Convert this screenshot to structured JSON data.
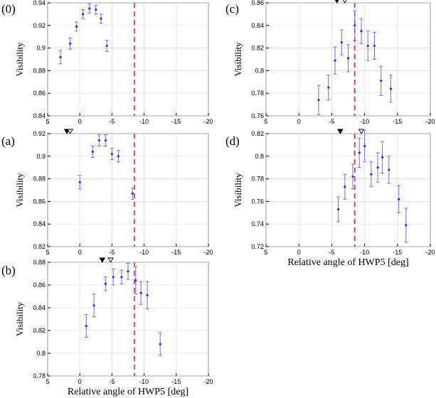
{
  "chart_data": [
    {
      "type": "scatter",
      "panel_label": "(0)",
      "title": "",
      "xlabel": "",
      "ylabel": "Visibility",
      "xlim": [
        5,
        -20
      ],
      "ylim": [
        0.84,
        0.94
      ],
      "xticks": [
        "5",
        "0",
        "-5",
        "-10",
        "-15",
        "-20"
      ],
      "yticks": [
        "0.84",
        "0.86",
        "0.88",
        "0.9",
        "0.92",
        "0.94"
      ],
      "grid": true,
      "dashed_line_x": -8.5,
      "markers": [],
      "series": [
        {
          "name": "Visibility",
          "x": [
            3,
            1.5,
            0.5,
            -0.5,
            -1.5,
            -2.5,
            -3.3,
            -4.2
          ],
          "y": [
            0.892,
            0.904,
            0.919,
            0.93,
            0.935,
            0.934,
            0.926,
            0.902
          ],
          "err": [
            0.006,
            0.005,
            0.004,
            0.004,
            0.004,
            0.004,
            0.004,
            0.005
          ]
        }
      ]
    },
    {
      "type": "scatter",
      "panel_label": "(a)",
      "title": "",
      "xlabel": "",
      "ylabel": "Visibility",
      "xlim": [
        5,
        -20
      ],
      "ylim": [
        0.82,
        0.92
      ],
      "xticks": [
        "5",
        "0",
        "-5",
        "-10",
        "-15",
        "-20"
      ],
      "yticks": [
        "0.82",
        "0.84",
        "0.86",
        "0.88",
        "0.9",
        "0.92"
      ],
      "grid": true,
      "dashed_line_x": -8.5,
      "markers": [
        {
          "x": 2.0,
          "style": "filled"
        },
        {
          "x": 1.5,
          "style": "open"
        }
      ],
      "series": [
        {
          "name": "Visibility",
          "x": [
            0,
            -2,
            -3,
            -4,
            -5,
            -6,
            -8.2
          ],
          "y": [
            0.877,
            0.904,
            0.914,
            0.914,
            0.902,
            0.9,
            0.867
          ],
          "err": [
            0.006,
            0.005,
            0.005,
            0.005,
            0.005,
            0.005,
            0.005
          ]
        }
      ]
    },
    {
      "type": "scatter",
      "panel_label": "(b)",
      "title": "",
      "xlabel": "Relative angle of HWP5 [deg]",
      "ylabel": "Visibility",
      "xlim": [
        5,
        -20
      ],
      "ylim": [
        0.78,
        0.88
      ],
      "xticks": [
        "5",
        "0",
        "-5",
        "-10",
        "-15",
        "-20"
      ],
      "yticks": [
        "0.78",
        "0.8",
        "0.82",
        "0.84",
        "0.86",
        "0.88"
      ],
      "grid": true,
      "dashed_line_x": -8.5,
      "markers": [
        {
          "x": -3.5,
          "style": "filled"
        },
        {
          "x": -4.8,
          "style": "open"
        }
      ],
      "series": [
        {
          "name": "Visibility",
          "x": [
            -1,
            -2.2,
            -4,
            -5.2,
            -6.5,
            -7.5,
            -8.7,
            -9.5,
            -10.5,
            -12.5
          ],
          "y": [
            0.824,
            0.842,
            0.861,
            0.867,
            0.867,
            0.872,
            0.864,
            0.853,
            0.851,
            0.808
          ],
          "err": [
            0.01,
            0.01,
            0.006,
            0.007,
            0.006,
            0.007,
            0.012,
            0.01,
            0.012,
            0.01
          ]
        }
      ]
    },
    {
      "type": "scatter",
      "panel_label": "(c)",
      "title": "",
      "xlabel": "",
      "ylabel": "Visibility",
      "xlim": [
        5,
        -20
      ],
      "ylim": [
        0.76,
        0.86
      ],
      "xticks": [
        "5",
        "0",
        "-5",
        "-10",
        "-15",
        "-20"
      ],
      "yticks": [
        "0.76",
        "0.78",
        "0.8",
        "0.82",
        "0.84",
        "0.86"
      ],
      "grid": true,
      "dashed_line_x": -8.5,
      "markers": [
        {
          "x": -5.8,
          "style": "filled"
        },
        {
          "x": -7.0,
          "style": "open"
        }
      ],
      "series": [
        {
          "name": "Visibility",
          "x": [
            -3,
            -4.5,
            -5.5,
            -6.5,
            -7.5,
            -8.5,
            -9.5,
            -10.5,
            -11.5,
            -12.5,
            -14
          ],
          "y": [
            0.774,
            0.785,
            0.809,
            0.825,
            0.811,
            0.84,
            0.835,
            0.822,
            0.822,
            0.791,
            0.784
          ],
          "err": [
            0.013,
            0.011,
            0.012,
            0.011,
            0.012,
            0.013,
            0.011,
            0.013,
            0.012,
            0.013,
            0.012
          ]
        }
      ]
    },
    {
      "type": "scatter",
      "panel_label": "(d)",
      "title": "",
      "xlabel": "Relative angle of HWP5 [deg]",
      "ylabel": "Visibility",
      "xlim": [
        5,
        -20
      ],
      "ylim": [
        0.72,
        0.82
      ],
      "xticks": [
        "5",
        "0",
        "-5",
        "-10",
        "-15",
        "-20"
      ],
      "yticks": [
        "0.72",
        "0.74",
        "0.76",
        "0.78",
        "0.8",
        "0.82"
      ],
      "grid": true,
      "dashed_line_x": -8.5,
      "markers": [
        {
          "x": -6.3,
          "style": "filled"
        },
        {
          "x": -9.5,
          "style": "open"
        }
      ],
      "series": [
        {
          "name": "Visibility",
          "x": [
            -6,
            -7,
            -8.2,
            -9.2,
            -10,
            -11,
            -12,
            -12.7,
            -13.7,
            -15.2,
            -16.3
          ],
          "y": [
            0.753,
            0.773,
            0.782,
            0.803,
            0.809,
            0.784,
            0.79,
            0.799,
            0.788,
            0.762,
            0.739
          ],
          "err": [
            0.011,
            0.011,
            0.011,
            0.013,
            0.014,
            0.011,
            0.013,
            0.014,
            0.012,
            0.012,
            0.015
          ]
        }
      ]
    }
  ]
}
